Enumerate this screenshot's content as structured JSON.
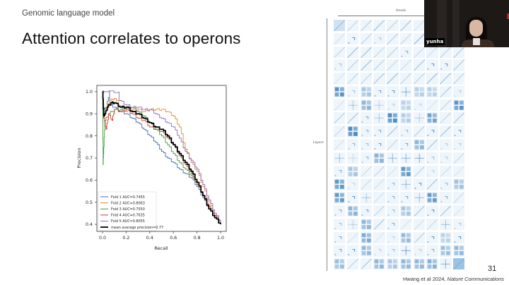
{
  "slide": {
    "section": "Genomic language model",
    "title": "Attention correlates to operons",
    "page_number": "31",
    "citation_authors": "Hwang et al 2024, ",
    "citation_journal": "Nature Communications"
  },
  "video": {
    "participant_name": "yunha"
  },
  "heatmap": {
    "x_label": "Heads",
    "y_label": "Layers",
    "rows": 19,
    "cols": 10,
    "color": "#1f6fb4"
  },
  "chart_data": {
    "type": "line",
    "title": "",
    "xlabel": "Recall",
    "ylabel": "Precision",
    "xlim": [
      0.0,
      1.0
    ],
    "ylim": [
      0.38,
      1.02
    ],
    "xticks": [
      "0.0",
      "0.2",
      "0.4",
      "0.6",
      "0.8",
      "1.0"
    ],
    "yticks": [
      "0.4",
      "0.5",
      "0.6",
      "0.7",
      "0.8",
      "0.9",
      "1.0"
    ],
    "grid": false,
    "legend_position": "lower left",
    "series": [
      {
        "name": "Fold 1 AUC=0.7455",
        "color": "#3a6fb0",
        "x": [
          0.0,
          0.01,
          0.03,
          0.06,
          0.06,
          0.1,
          0.15,
          0.2,
          0.25,
          0.3,
          0.35,
          0.4,
          0.45,
          0.5,
          0.55,
          0.6,
          0.65,
          0.7,
          0.75,
          0.8,
          0.85,
          0.9,
          0.95,
          1.0
        ],
        "y": [
          1.0,
          0.92,
          0.93,
          1.0,
          0.94,
          0.93,
          0.91,
          0.9,
          0.88,
          0.86,
          0.83,
          0.8,
          0.77,
          0.73,
          0.7,
          0.68,
          0.65,
          0.63,
          0.61,
          0.57,
          0.52,
          0.47,
          0.43,
          0.4
        ]
      },
      {
        "name": "Fold 2 AUC=0.8063",
        "color": "#e8852b",
        "x": [
          0.0,
          0.01,
          0.03,
          0.06,
          0.1,
          0.15,
          0.2,
          0.25,
          0.3,
          0.35,
          0.4,
          0.45,
          0.5,
          0.55,
          0.6,
          0.65,
          0.7,
          0.75,
          0.8,
          0.85,
          0.9,
          0.95,
          1.0
        ],
        "y": [
          1.0,
          0.88,
          0.93,
          0.96,
          0.97,
          0.93,
          0.91,
          0.92,
          0.92,
          0.91,
          0.92,
          0.92,
          0.92,
          0.91,
          0.89,
          0.84,
          0.74,
          0.68,
          0.64,
          0.57,
          0.5,
          0.44,
          0.41
        ]
      },
      {
        "name": "Fold 3 AUC=0.7550",
        "color": "#3d9a3d",
        "x": [
          0.0,
          0.005,
          0.01,
          0.02,
          0.05,
          0.1,
          0.15,
          0.2,
          0.25,
          0.3,
          0.35,
          0.4,
          0.45,
          0.5,
          0.55,
          0.6,
          0.65,
          0.7,
          0.75,
          0.8,
          0.85,
          0.9,
          0.95,
          1.0
        ],
        "y": [
          1.0,
          0.67,
          0.75,
          0.87,
          0.9,
          0.92,
          0.92,
          0.93,
          0.93,
          0.91,
          0.89,
          0.86,
          0.83,
          0.8,
          0.76,
          0.72,
          0.68,
          0.65,
          0.62,
          0.58,
          0.53,
          0.48,
          0.44,
          0.41
        ]
      },
      {
        "name": "Fold 4 AUC=0.7635",
        "color": "#cc3b2f",
        "x": [
          0.0,
          0.01,
          0.03,
          0.05,
          0.08,
          0.1,
          0.15,
          0.2,
          0.25,
          0.3,
          0.35,
          0.4,
          0.45,
          0.5,
          0.55,
          0.6,
          0.65,
          0.7,
          0.75,
          0.8,
          0.85,
          0.9,
          0.95,
          1.0
        ],
        "y": [
          1.0,
          0.88,
          0.83,
          0.9,
          0.87,
          0.92,
          0.91,
          0.92,
          0.9,
          0.88,
          0.87,
          0.84,
          0.83,
          0.82,
          0.79,
          0.76,
          0.71,
          0.67,
          0.63,
          0.58,
          0.53,
          0.48,
          0.44,
          0.41
        ]
      },
      {
        "name": "Fold 5 AUC=0.8055",
        "color": "#8a6cc2",
        "x": [
          0.0,
          0.01,
          0.01,
          0.14,
          0.14,
          0.2,
          0.25,
          0.3,
          0.35,
          0.4,
          0.45,
          0.5,
          0.55,
          0.6,
          0.65,
          0.7,
          0.75,
          0.8,
          0.85,
          0.9,
          0.95,
          1.0
        ],
        "y": [
          1.0,
          1.0,
          1.0,
          1.0,
          0.96,
          0.94,
          0.93,
          0.93,
          0.92,
          0.92,
          0.9,
          0.88,
          0.86,
          0.84,
          0.79,
          0.73,
          0.69,
          0.65,
          0.58,
          0.51,
          0.45,
          0.41
        ]
      },
      {
        "name": "mean average precision=0.77",
        "color": "#000000",
        "x": [
          0.0,
          0.01,
          0.02,
          0.04,
          0.07,
          0.1,
          0.15,
          0.2,
          0.25,
          0.3,
          0.35,
          0.4,
          0.45,
          0.5,
          0.55,
          0.6,
          0.65,
          0.7,
          0.75,
          0.8,
          0.85,
          0.9,
          0.95,
          1.0
        ],
        "y": [
          1.0,
          0.89,
          0.9,
          0.93,
          0.95,
          0.95,
          0.93,
          0.93,
          0.91,
          0.9,
          0.88,
          0.86,
          0.84,
          0.83,
          0.8,
          0.76,
          0.72,
          0.68,
          0.64,
          0.59,
          0.53,
          0.47,
          0.43,
          0.4
        ]
      }
    ]
  }
}
